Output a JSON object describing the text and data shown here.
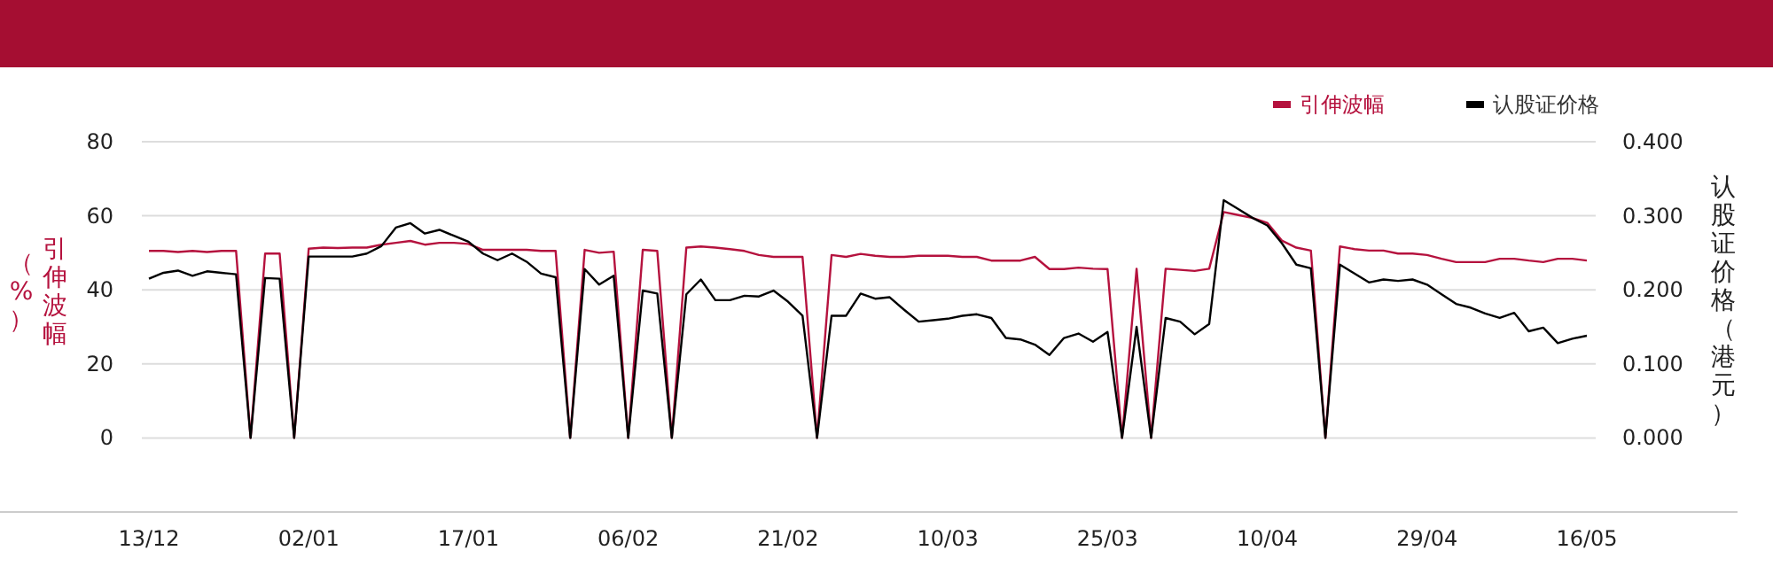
{
  "chart_data": {
    "type": "line",
    "categories": [
      "13/12",
      null,
      null,
      null,
      null,
      null,
      null,
      null,
      null,
      null,
      null,
      "02/01",
      null,
      null,
      null,
      null,
      null,
      null,
      null,
      null,
      null,
      null,
      "17/01",
      null,
      null,
      null,
      null,
      null,
      null,
      null,
      null,
      null,
      null,
      "06/02",
      null,
      null,
      null,
      null,
      null,
      null,
      null,
      null,
      null,
      null,
      "21/02",
      null,
      null,
      null,
      null,
      null,
      null,
      null,
      null,
      null,
      null,
      "10/03",
      null,
      null,
      null,
      null,
      null,
      null,
      null,
      null,
      null,
      null,
      "25/03",
      null,
      null,
      null,
      null,
      null,
      null,
      null,
      null,
      null,
      null,
      "10/04",
      null,
      null,
      null,
      null,
      null,
      null,
      null,
      null,
      null,
      null,
      "29/04",
      null,
      null,
      null,
      null,
      null,
      null,
      null,
      null,
      null,
      null,
      "16/05"
    ],
    "series": [
      {
        "name": "引伸波幅",
        "color": "#b5123e",
        "values": [
          50.5,
          50.5,
          50.2,
          50.5,
          50.2,
          50.5,
          50.5,
          0,
          49.8,
          49.8,
          0,
          51.1,
          51.4,
          51.3,
          51.4,
          51.4,
          52.2,
          52.7,
          53.2,
          52.2,
          52.7,
          52.7,
          52.4,
          50.8,
          50.8,
          50.8,
          50.8,
          50.5,
          50.5,
          0,
          50.8,
          50.0,
          50.3,
          0,
          50.8,
          50.5,
          0,
          51.4,
          51.7,
          51.4,
          51.0,
          50.5,
          49.4,
          48.9,
          48.9,
          48.9,
          0,
          49.4,
          48.9,
          49.7,
          49.2,
          48.9,
          48.9,
          49.2,
          49.2,
          49.2,
          48.9,
          48.9,
          47.9,
          47.9,
          47.9,
          48.9,
          45.6,
          45.6,
          46.0,
          45.7,
          45.6,
          0,
          45.7,
          0,
          45.7,
          45.4,
          45.1,
          45.7,
          61.0,
          60.2,
          59.4,
          58.1,
          53.3,
          51.4,
          50.6,
          0,
          51.7,
          51.0,
          50.6,
          50.6,
          49.8,
          49.8,
          49.4,
          48.4,
          47.5,
          47.5,
          47.5,
          48.4,
          48.4,
          47.9,
          47.5,
          48.4,
          48.4,
          47.9
        ]
      },
      {
        "name": "认股证价格",
        "color": "#000000",
        "axis": "y2",
        "values": [
          0.215,
          0.223,
          0.226,
          0.219,
          0.225,
          0.223,
          0.221,
          0,
          0.216,
          0.215,
          0,
          0.245,
          0.245,
          0.245,
          0.245,
          0.249,
          0.259,
          0.284,
          0.29,
          0.276,
          0.281,
          0.273,
          0.265,
          0.249,
          0.24,
          0.249,
          0.238,
          0.222,
          0.217,
          0,
          0.228,
          0.207,
          0.219,
          0,
          0.199,
          0.195,
          0,
          0.194,
          0.214,
          0.186,
          0.186,
          0.192,
          0.191,
          0.199,
          0.184,
          0.165,
          0,
          0.165,
          0.165,
          0.195,
          0.188,
          0.19,
          0.173,
          0.157,
          0.159,
          0.161,
          0.165,
          0.167,
          0.162,
          0.135,
          0.133,
          0.126,
          0.112,
          0.135,
          0.141,
          0.13,
          0.143,
          0,
          0.15,
          0,
          0.162,
          0.157,
          0.14,
          0.154,
          0.321,
          0.309,
          0.297,
          0.287,
          0.263,
          0.234,
          0.229,
          0,
          0.234,
          0.222,
          0.21,
          0.214,
          0.212,
          0.214,
          0.207,
          0.194,
          0.181,
          0.176,
          0.168,
          0.162,
          0.169,
          0.144,
          0.149,
          0.128,
          0.134,
          0.138
        ]
      }
    ],
    "ylabel": "引伸波幅（%）",
    "y2label": "认股证价格（港元）",
    "ylim": [
      -20,
      80
    ],
    "yticks": [
      0,
      20,
      40,
      60,
      80
    ],
    "y2lim": [
      -0.1,
      0.4
    ],
    "y2ticks": [
      {
        "value": 0,
        "label": "0.000"
      },
      {
        "value": 0.1,
        "label": "0.100"
      },
      {
        "value": 0.2,
        "label": "0.200"
      },
      {
        "value": 0.3,
        "label": "0.300"
      },
      {
        "value": 0.4,
        "label": "0.400"
      }
    ],
    "grid": "y",
    "legend": "top right",
    "marker": "none",
    "line_style": "solid"
  }
}
